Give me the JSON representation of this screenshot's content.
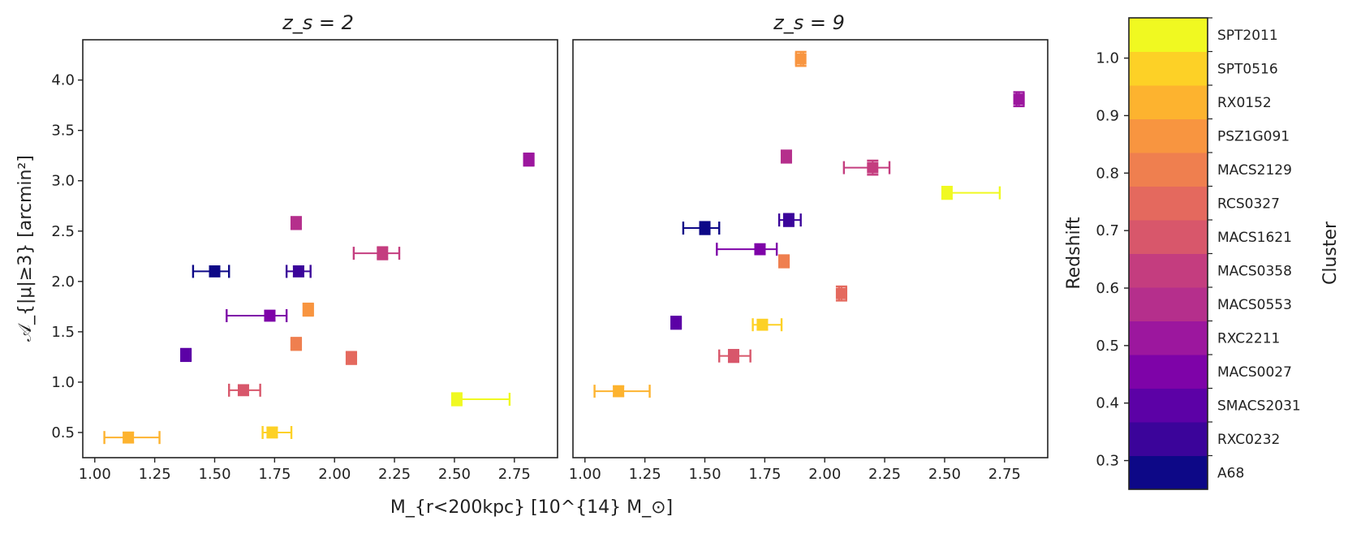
{
  "chart_data": {
    "type": "scatter",
    "xlabel": "M_{r<200kpc} [10^{14} M_⊙]",
    "ylabel": "𝒜_{|μ|≥3} [arcmin²]",
    "xlim": [
      0.95,
      2.93
    ],
    "x_ticks": [
      "1.00",
      "1.25",
      "1.50",
      "1.75",
      "2.00",
      "2.25",
      "2.50",
      "2.75"
    ],
    "panels": [
      {
        "title": "z_s = 2",
        "ylim": [
          0.25,
          4.4
        ],
        "y_ticks": [
          "0.5",
          "1.0",
          "1.5",
          "2.0",
          "2.5",
          "3.0",
          "3.5",
          "4.0"
        ],
        "points": [
          {
            "cluster": "A68",
            "x": 1.5,
            "xerr": [
              1.41,
              1.56
            ],
            "y": 2.1,
            "yerr": 0.05
          },
          {
            "cluster": "RXC0232",
            "x": 1.85,
            "xerr": [
              1.8,
              1.9
            ],
            "y": 2.1,
            "yerr": 0.05
          },
          {
            "cluster": "SMACS2031",
            "x": 1.38,
            "xerr": [
              1.37,
              1.4
            ],
            "y": 1.27,
            "yerr": 0.06
          },
          {
            "cluster": "MACS0027",
            "x": 1.73,
            "xerr": [
              1.55,
              1.8
            ],
            "y": 1.66,
            "yerr": 0.05
          },
          {
            "cluster": "RXC2211",
            "x": 2.81,
            "xerr": [
              2.8,
              2.83
            ],
            "y": 3.21,
            "yerr": 0.06
          },
          {
            "cluster": "MACS0553",
            "x": 1.84,
            "xerr": [
              1.83,
              1.85
            ],
            "y": 2.58,
            "yerr": 0.06
          },
          {
            "cluster": "MACS0358",
            "x": 2.2,
            "xerr": [
              2.08,
              2.27
            ],
            "y": 2.28,
            "yerr": 0.06
          },
          {
            "cluster": "MACS1621",
            "x": 1.62,
            "xerr": [
              1.56,
              1.69
            ],
            "y": 0.92,
            "yerr": 0.05
          },
          {
            "cluster": "RCS0327",
            "x": 2.07,
            "xerr": [
              2.06,
              2.09
            ],
            "y": 1.24,
            "yerr": 0.06
          },
          {
            "cluster": "MACS2129",
            "x": 1.84,
            "xerr": [
              1.82,
              1.86
            ],
            "y": 1.38,
            "yerr": 0.06
          },
          {
            "cluster": "PSZ1G091",
            "x": 1.89,
            "xerr": [
              1.88,
              1.91
            ],
            "y": 1.72,
            "yerr": 0.06
          },
          {
            "cluster": "RX0152",
            "x": 1.14,
            "xerr": [
              1.04,
              1.27
            ],
            "y": 0.45,
            "yerr": 0.05
          },
          {
            "cluster": "SPT0516",
            "x": 1.74,
            "xerr": [
              1.7,
              1.82
            ],
            "y": 0.5,
            "yerr": 0.05
          },
          {
            "cluster": "SPT2011",
            "x": 2.51,
            "xerr": [
              2.5,
              2.73
            ],
            "y": 0.83,
            "yerr": 0.06
          }
        ]
      },
      {
        "title": "z_s = 9",
        "ylim": [
          0.25,
          4.4
        ],
        "y_ticks": [],
        "points": [
          {
            "cluster": "A68",
            "x": 1.5,
            "xerr": [
              1.41,
              1.56
            ],
            "y": 2.53,
            "yerr": 0.06
          },
          {
            "cluster": "RXC0232",
            "x": 1.85,
            "xerr": [
              1.81,
              1.9
            ],
            "y": 2.61,
            "yerr": 0.06
          },
          {
            "cluster": "SMACS2031",
            "x": 1.38,
            "xerr": [
              1.37,
              1.4
            ],
            "y": 1.59,
            "yerr": 0.06
          },
          {
            "cluster": "MACS0027",
            "x": 1.73,
            "xerr": [
              1.55,
              1.8
            ],
            "y": 2.32,
            "yerr": 0.05
          },
          {
            "cluster": "RXC2211",
            "x": 2.81,
            "xerr": [
              2.8,
              2.83
            ],
            "y": 3.81,
            "yerr": 0.07
          },
          {
            "cluster": "MACS0553",
            "x": 1.84,
            "xerr": [
              1.83,
              1.85
            ],
            "y": 3.24,
            "yerr": 0.06
          },
          {
            "cluster": "MACS0358",
            "x": 2.2,
            "xerr": [
              2.08,
              2.27
            ],
            "y": 3.13,
            "yerr": 0.07
          },
          {
            "cluster": "MACS1621",
            "x": 1.62,
            "xerr": [
              1.56,
              1.69
            ],
            "y": 1.26,
            "yerr": 0.06
          },
          {
            "cluster": "RCS0327",
            "x": 2.07,
            "xerr": [
              2.06,
              2.09
            ],
            "y": 1.88,
            "yerr": 0.07
          },
          {
            "cluster": "MACS2129",
            "x": 1.83,
            "xerr": [
              1.82,
              1.85
            ],
            "y": 2.2,
            "yerr": 0.06
          },
          {
            "cluster": "PSZ1G091",
            "x": 1.9,
            "xerr": [
              1.88,
              1.91
            ],
            "y": 4.21,
            "yerr": 0.07
          },
          {
            "cluster": "RX0152",
            "x": 1.14,
            "xerr": [
              1.04,
              1.27
            ],
            "y": 0.91,
            "yerr": 0.05
          },
          {
            "cluster": "SPT0516",
            "x": 1.74,
            "xerr": [
              1.7,
              1.82
            ],
            "y": 1.57,
            "yerr": 0.05
          },
          {
            "cluster": "SPT2011",
            "x": 2.51,
            "xerr": [
              2.5,
              2.73
            ],
            "y": 2.88,
            "yerr": 0.06
          }
        ]
      }
    ],
    "colorbar": {
      "label": "Redshift",
      "right_label": "Cluster",
      "range": [
        0.25,
        1.07
      ],
      "ticks": [
        "0.3",
        "0.4",
        "0.5",
        "0.6",
        "0.7",
        "0.8",
        "0.9",
        "1.0"
      ],
      "clusters": [
        {
          "name": "A68",
          "color": "#0d0887"
        },
        {
          "name": "RXC0232",
          "color": "#3b049a"
        },
        {
          "name": "SMACS2031",
          "color": "#5c01a6"
        },
        {
          "name": "MACS0027",
          "color": "#7e03a8"
        },
        {
          "name": "RXC2211",
          "color": "#9c179e"
        },
        {
          "name": "MACS0553",
          "color": "#b52f8c"
        },
        {
          "name": "MACS0358",
          "color": "#c43d7f"
        },
        {
          "name": "MACS1621",
          "color": "#d8576b"
        },
        {
          "name": "RCS0327",
          "color": "#e4695e"
        },
        {
          "name": "MACS2129",
          "color": "#ef7f4f"
        },
        {
          "name": "PSZ1G091",
          "color": "#f89540"
        },
        {
          "name": "RX0152",
          "color": "#fdb32f"
        },
        {
          "name": "SPT0516",
          "color": "#fdd126"
        },
        {
          "name": "SPT2011",
          "color": "#f0f921"
        }
      ]
    }
  }
}
